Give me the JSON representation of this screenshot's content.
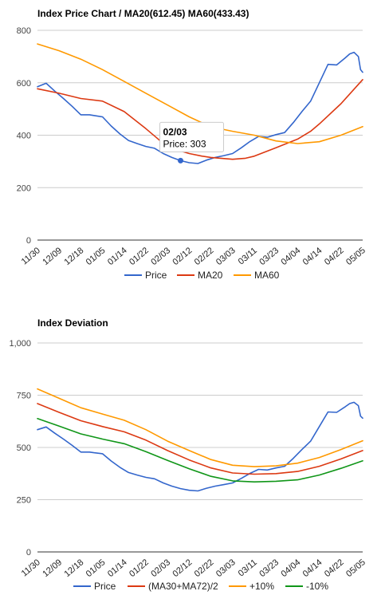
{
  "colors": {
    "price": "#3366cc",
    "red": "#dc3912",
    "orange": "#ff9900",
    "green": "#109618",
    "grid": "#cccccc",
    "axis": "#333333"
  },
  "x_labels": [
    "11/30",
    "12/09",
    "12/18",
    "01/05",
    "01/14",
    "01/22",
    "02/03",
    "02/12",
    "02/22",
    "03/03",
    "03/11",
    "03/23",
    "04/04",
    "04/14",
    "04/22",
    "05/05"
  ],
  "chart_data": [
    {
      "type": "line",
      "title": "Index Price Chart / MA20(612.45) MA60(433.43)",
      "xlabel": "",
      "ylabel": "",
      "ylim": [
        0,
        800
      ],
      "yticks": [
        0,
        200,
        400,
        600,
        800
      ],
      "ytick_labels": [
        "0",
        "200",
        "400",
        "600",
        "800"
      ],
      "grid": true,
      "legend_position": "bottom",
      "series": [
        {
          "name": "Price",
          "color": "#3366cc",
          "x": [
            0,
            0.4,
            0.8,
            1.2,
            1.6,
            2.0,
            2.4,
            2.6,
            3.0,
            3.4,
            3.8,
            4.2,
            4.6,
            5.0,
            5.4,
            5.8,
            6.2,
            6.6,
            7.0,
            7.4,
            7.8,
            8.2,
            8.6,
            9.0,
            9.4,
            9.8,
            10.2,
            10.6,
            11.0,
            11.4,
            11.8,
            12.2,
            12.6,
            13.0,
            13.4,
            13.8,
            14.2,
            14.4,
            14.6,
            14.8,
            14.9,
            15.0
          ],
          "y": [
            585,
            598,
            568,
            540,
            510,
            478,
            478,
            475,
            470,
            435,
            405,
            380,
            368,
            357,
            350,
            330,
            315,
            303,
            295,
            292,
            305,
            315,
            322,
            330,
            352,
            376,
            395,
            392,
            402,
            410,
            448,
            490,
            530,
            600,
            670,
            668,
            695,
            710,
            716,
            700,
            650,
            640
          ]
        },
        {
          "name": "MA20",
          "color": "#dc3912",
          "x": [
            0,
            1,
            2,
            3,
            4,
            5,
            6,
            7,
            7.6,
            8,
            9,
            9.6,
            10,
            11,
            12,
            12.6,
            13,
            14,
            15
          ],
          "y": [
            577,
            560,
            540,
            530,
            490,
            425,
            355,
            330,
            320,
            315,
            308,
            312,
            320,
            352,
            385,
            415,
            443,
            520,
            612
          ]
        },
        {
          "name": "MA60",
          "color": "#ff9900",
          "x": [
            0,
            1,
            2,
            3,
            4,
            5,
            6,
            7,
            8,
            9,
            10,
            11,
            12,
            13,
            14,
            15
          ],
          "y": [
            748,
            722,
            690,
            650,
            605,
            560,
            515,
            470,
            432,
            415,
            400,
            378,
            368,
            375,
            400,
            433
          ]
        }
      ],
      "tooltip": {
        "title": "02/03",
        "label": "Price: 303",
        "x": 6.6,
        "y": 303
      }
    },
    {
      "type": "line",
      "title": "Index Deviation",
      "xlabel": "",
      "ylabel": "",
      "ylim": [
        0,
        1000
      ],
      "yticks": [
        0,
        250,
        500,
        750,
        1000
      ],
      "ytick_labels": [
        "0",
        "250",
        "500",
        "750",
        "1,000"
      ],
      "grid": true,
      "legend_position": "bottom",
      "series": [
        {
          "name": "Price",
          "color": "#3366cc",
          "x": [
            0,
            0.4,
            0.8,
            1.2,
            1.6,
            2.0,
            2.4,
            2.6,
            3.0,
            3.4,
            3.8,
            4.2,
            4.6,
            5.0,
            5.4,
            5.8,
            6.2,
            6.6,
            7.0,
            7.4,
            7.8,
            8.2,
            8.6,
            9.0,
            9.4,
            9.8,
            10.2,
            10.6,
            11.0,
            11.4,
            11.8,
            12.2,
            12.6,
            13.0,
            13.4,
            13.8,
            14.2,
            14.4,
            14.6,
            14.8,
            14.9,
            15.0
          ],
          "y": [
            585,
            598,
            568,
            540,
            510,
            478,
            478,
            475,
            470,
            435,
            405,
            380,
            368,
            357,
            350,
            330,
            315,
            303,
            295,
            292,
            305,
            315,
            322,
            330,
            352,
            376,
            395,
            392,
            402,
            410,
            448,
            490,
            530,
            600,
            670,
            668,
            695,
            710,
            716,
            700,
            650,
            640
          ]
        },
        {
          "name": "(MA30+MA72)/2",
          "color": "#dc3912",
          "x": [
            0,
            1,
            2,
            3,
            4,
            5,
            6,
            7,
            8,
            9,
            10,
            11,
            12,
            13,
            14,
            15
          ],
          "y": [
            710,
            668,
            628,
            600,
            575,
            535,
            485,
            440,
            402,
            378,
            372,
            375,
            385,
            410,
            445,
            485
          ]
        },
        {
          "name": "+10%",
          "color": "#ff9900",
          "x": [
            0,
            1,
            2,
            3,
            4,
            5,
            6,
            7,
            8,
            9,
            10,
            11,
            12,
            13,
            14,
            15
          ],
          "y": [
            780,
            735,
            690,
            660,
            630,
            585,
            530,
            485,
            442,
            415,
            408,
            412,
            425,
            452,
            490,
            532
          ]
        },
        {
          "name": "-10%",
          "color": "#109618",
          "x": [
            0,
            1,
            2,
            3,
            4,
            5,
            6,
            7,
            8,
            9,
            10,
            11,
            12,
            13,
            14,
            15
          ],
          "y": [
            638,
            602,
            565,
            540,
            518,
            480,
            438,
            398,
            362,
            340,
            335,
            338,
            345,
            368,
            400,
            436
          ]
        }
      ]
    }
  ]
}
